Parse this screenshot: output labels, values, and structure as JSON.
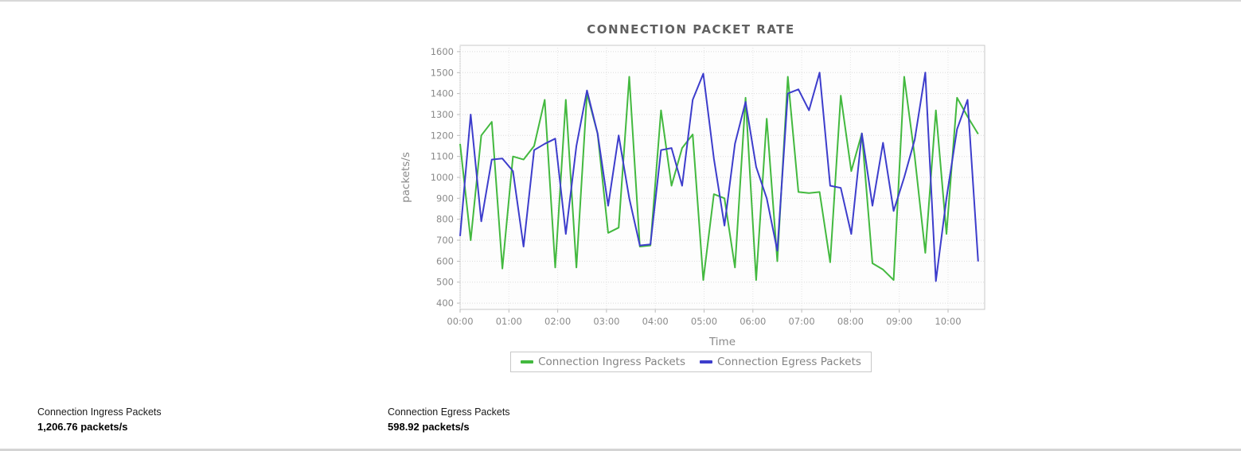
{
  "chart_data": {
    "type": "line",
    "title": "CONNECTION PACKET RATE",
    "xlabel": "Time",
    "ylabel": "packets/s",
    "ylim": [
      400,
      1600
    ],
    "grid": true,
    "legend_position": "bottom",
    "y_ticks": [
      400,
      500,
      600,
      700,
      800,
      900,
      1000,
      1100,
      1200,
      1300,
      1400,
      1500,
      1600
    ],
    "x_ticks": [
      "00:00",
      "01:00",
      "02:00",
      "03:00",
      "04:00",
      "05:00",
      "06:00",
      "07:00",
      "08:00",
      "09:00",
      "10:00"
    ],
    "x": [
      "00:00",
      "00:13",
      "00:26",
      "00:39",
      "00:52",
      "01:05",
      "01:18",
      "01:31",
      "01:44",
      "01:57",
      "02:10",
      "02:23",
      "02:36",
      "02:49",
      "03:02",
      "03:15",
      "03:28",
      "03:41",
      "03:54",
      "04:07",
      "04:20",
      "04:33",
      "04:46",
      "04:59",
      "05:12",
      "05:25",
      "05:38",
      "05:51",
      "06:04",
      "06:17",
      "06:30",
      "06:43",
      "06:56",
      "07:09",
      "07:22",
      "07:35",
      "07:48",
      "08:01",
      "08:14",
      "08:27",
      "08:40",
      "08:53",
      "09:06",
      "09:19",
      "09:32",
      "09:45",
      "09:58",
      "10:11",
      "10:24",
      "10:37"
    ],
    "series": [
      {
        "name": "Connection Ingress Packets",
        "color": "#43b93f",
        "values": [
          1160,
          700,
          1200,
          1265,
          565,
          1100,
          1085,
          1150,
          1370,
          570,
          1370,
          570,
          1400,
          1210,
          735,
          760,
          1480,
          670,
          675,
          1320,
          960,
          1140,
          1205,
          510,
          920,
          900,
          570,
          1380,
          510,
          1280,
          600,
          1480,
          930,
          925,
          930,
          595,
          1390,
          1030,
          1210,
          590,
          560,
          510,
          1480,
          1100,
          640,
          1320,
          730,
          1380,
          1290,
          1206.76
        ]
      },
      {
        "name": "Connection Egress Packets",
        "color": "#3d3dcc",
        "values": [
          720,
          1300,
          790,
          1085,
          1090,
          1030,
          670,
          1130,
          1160,
          1185,
          730,
          1150,
          1415,
          1210,
          865,
          1200,
          900,
          675,
          680,
          1130,
          1140,
          960,
          1370,
          1495,
          1090,
          770,
          1160,
          1360,
          1050,
          900,
          650,
          1400,
          1420,
          1320,
          1500,
          960,
          950,
          730,
          1210,
          865,
          1165,
          840,
          1000,
          1180,
          1500,
          505,
          900,
          1230,
          1370,
          598.92
        ]
      }
    ]
  },
  "stats": {
    "ingress": {
      "label": "Connection Ingress Packets",
      "value": "1,206.76 packets/s"
    },
    "egress": {
      "label": "Connection Egress Packets",
      "value": "598.92 packets/s"
    }
  }
}
